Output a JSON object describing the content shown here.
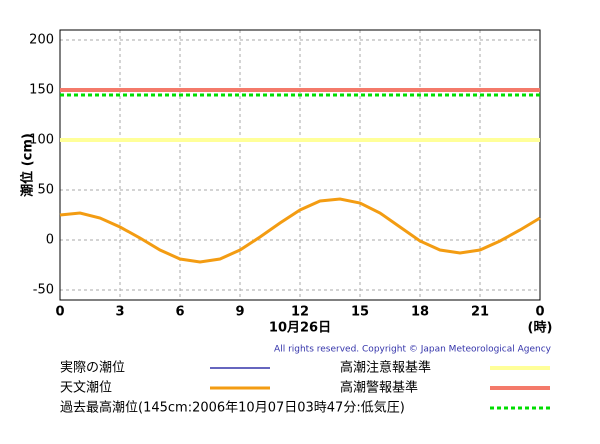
{
  "chart_data": {
    "type": "line",
    "x_label": "10月26日",
    "x_unit_label": "(時)",
    "y_label": "潮位 (cm)",
    "copyright": "All rights reserved. Copyright © Japan Meteorological Agency",
    "x": [
      0,
      1,
      2,
      3,
      4,
      5,
      6,
      7,
      8,
      9,
      10,
      11,
      12,
      13,
      14,
      15,
      16,
      17,
      18,
      19,
      20,
      21,
      22,
      23,
      24
    ],
    "series": [
      {
        "name": "実際の潮位",
        "color": "#3333aa",
        "values": [
          null,
          null,
          null,
          null,
          null,
          null,
          null,
          null,
          null,
          null,
          null,
          null,
          null,
          null,
          null,
          null,
          null,
          null,
          null,
          null,
          null,
          null,
          null,
          null,
          null
        ]
      },
      {
        "name": "天文潮位",
        "color": "#f39c12",
        "values": [
          25,
          27,
          22,
          13,
          2,
          -10,
          -19,
          -22,
          -19,
          -10,
          3,
          17,
          30,
          39,
          41,
          37,
          27,
          13,
          -1,
          -10,
          -13,
          -10,
          -1,
          10,
          22
        ]
      }
    ],
    "reference_lines": [
      {
        "name": "高潮注意報基準",
        "value": 100,
        "color": "#ffff99",
        "dashed": false
      },
      {
        "name": "高潮警報基準",
        "value": 150,
        "color": "#f47a6a",
        "dashed": false
      },
      {
        "name": "過去最高潮位(145cm:2006年10月07日03時47分:低気圧)",
        "value": 145,
        "color": "#00dd00",
        "dashed": true
      }
    ],
    "xlim": [
      0,
      24
    ],
    "xticks": [
      0,
      3,
      6,
      9,
      12,
      15,
      18,
      21,
      {
        "value": 24,
        "label": "0"
      }
    ],
    "ylim": [
      -60,
      210
    ],
    "yticks": [
      -50,
      0,
      50,
      100,
      150,
      200
    ],
    "grid": true
  }
}
